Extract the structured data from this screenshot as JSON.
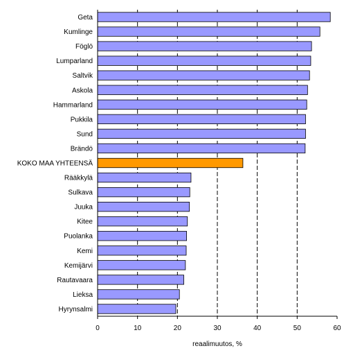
{
  "chart_data": {
    "type": "bar",
    "orientation": "horizontal",
    "categories": [
      "Geta",
      "Kumlinge",
      "Föglö",
      "Lumparland",
      "Saltvik",
      "Askola",
      "Hammarland",
      "Pukkila",
      "Sund",
      "Brändö",
      "KOKO MAA YHTEENSÄ",
      "Rääkkylä",
      "Sulkava",
      "Juuka",
      "Kitee",
      "Puolanka",
      "Kemi",
      "Kemijärvi",
      "Rautavaara",
      "Lieksa",
      "Hyrynsalmi"
    ],
    "values": [
      58.3,
      55.7,
      53.6,
      53.4,
      53.1,
      52.6,
      52.4,
      52.1,
      52.1,
      52.0,
      36.4,
      23.4,
      23.1,
      23.0,
      22.5,
      22.3,
      22.2,
      22.0,
      21.6,
      20.5,
      19.6
    ],
    "highlight_category": "KOKO MAA YHTEENSÄ",
    "xlabel": "reaalimuutos, %",
    "ylabel": "",
    "xlim": [
      0,
      60
    ],
    "xticks": [
      0,
      10,
      20,
      30,
      40,
      50,
      60
    ],
    "gridlines": "vertical dashed",
    "colors": {
      "bar": "#9999ff",
      "highlight": "#ff9900",
      "bar_edge": "#000000",
      "grid": "#000000"
    }
  }
}
